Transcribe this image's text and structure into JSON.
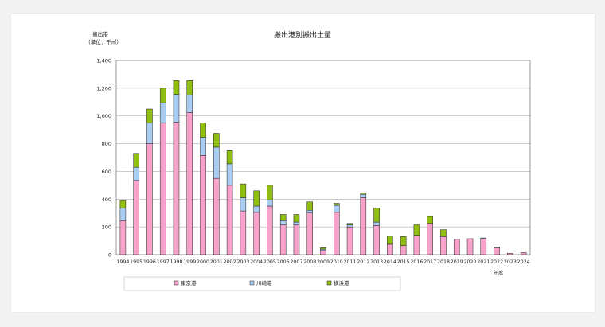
{
  "chart_data": {
    "type": "bar",
    "stacked": true,
    "title": "搬出港別搬出土量",
    "ylabel_line1": "搬出港",
    "ylabel_line2": "（単位：千㎥）",
    "xlabel": "年度",
    "ylim": [
      0,
      1400
    ],
    "yticks": [
      {
        "value": 0,
        "label": "0"
      },
      {
        "value": 200,
        "label": "200"
      },
      {
        "value": 400,
        "label": "400"
      },
      {
        "value": 600,
        "label": "600"
      },
      {
        "value": 800,
        "label": "800"
      },
      {
        "value": 1000,
        "label": "1,000"
      },
      {
        "value": 1200,
        "label": "1,200"
      },
      {
        "value": 1400,
        "label": "1,400"
      }
    ],
    "grid": true,
    "legend_position": "bottom",
    "categories": [
      "1994",
      "1995",
      "1996",
      "1997",
      "1998",
      "1999",
      "2000",
      "2001",
      "2002",
      "2003",
      "2004",
      "2005",
      "2006",
      "2007",
      "2008",
      "2009",
      "2010",
      "2011",
      "2012",
      "2013",
      "2014",
      "2015",
      "2016",
      "2017",
      "2018",
      "2019",
      "2020",
      "2021",
      "2022",
      "2023",
      "2024"
    ],
    "series": [
      {
        "name": "東京港",
        "color": "#f7a1cb",
        "values": [
          245,
          535,
          800,
          950,
          955,
          1025,
          715,
          550,
          500,
          315,
          305,
          350,
          215,
          215,
          300,
          30,
          305,
          200,
          410,
          210,
          75,
          65,
          140,
          225,
          130,
          110,
          115,
          115,
          50,
          10,
          15
        ]
      },
      {
        "name": "川崎港",
        "color": "#a9cdf2",
        "values": [
          90,
          95,
          150,
          145,
          200,
          125,
          130,
          225,
          155,
          95,
          45,
          45,
          30,
          20,
          20,
          10,
          50,
          15,
          25,
          25,
          0,
          0,
          0,
          0,
          0,
          0,
          0,
          5,
          5,
          0,
          0
        ]
      },
      {
        "name": "横浜港",
        "color": "#8fbd10",
        "values": [
          55,
          100,
          100,
          105,
          100,
          105,
          105,
          100,
          95,
          100,
          110,
          105,
          45,
          55,
          60,
          10,
          15,
          10,
          10,
          100,
          60,
          65,
          75,
          50,
          50,
          0,
          0,
          0,
          0,
          0,
          0
        ]
      }
    ]
  }
}
